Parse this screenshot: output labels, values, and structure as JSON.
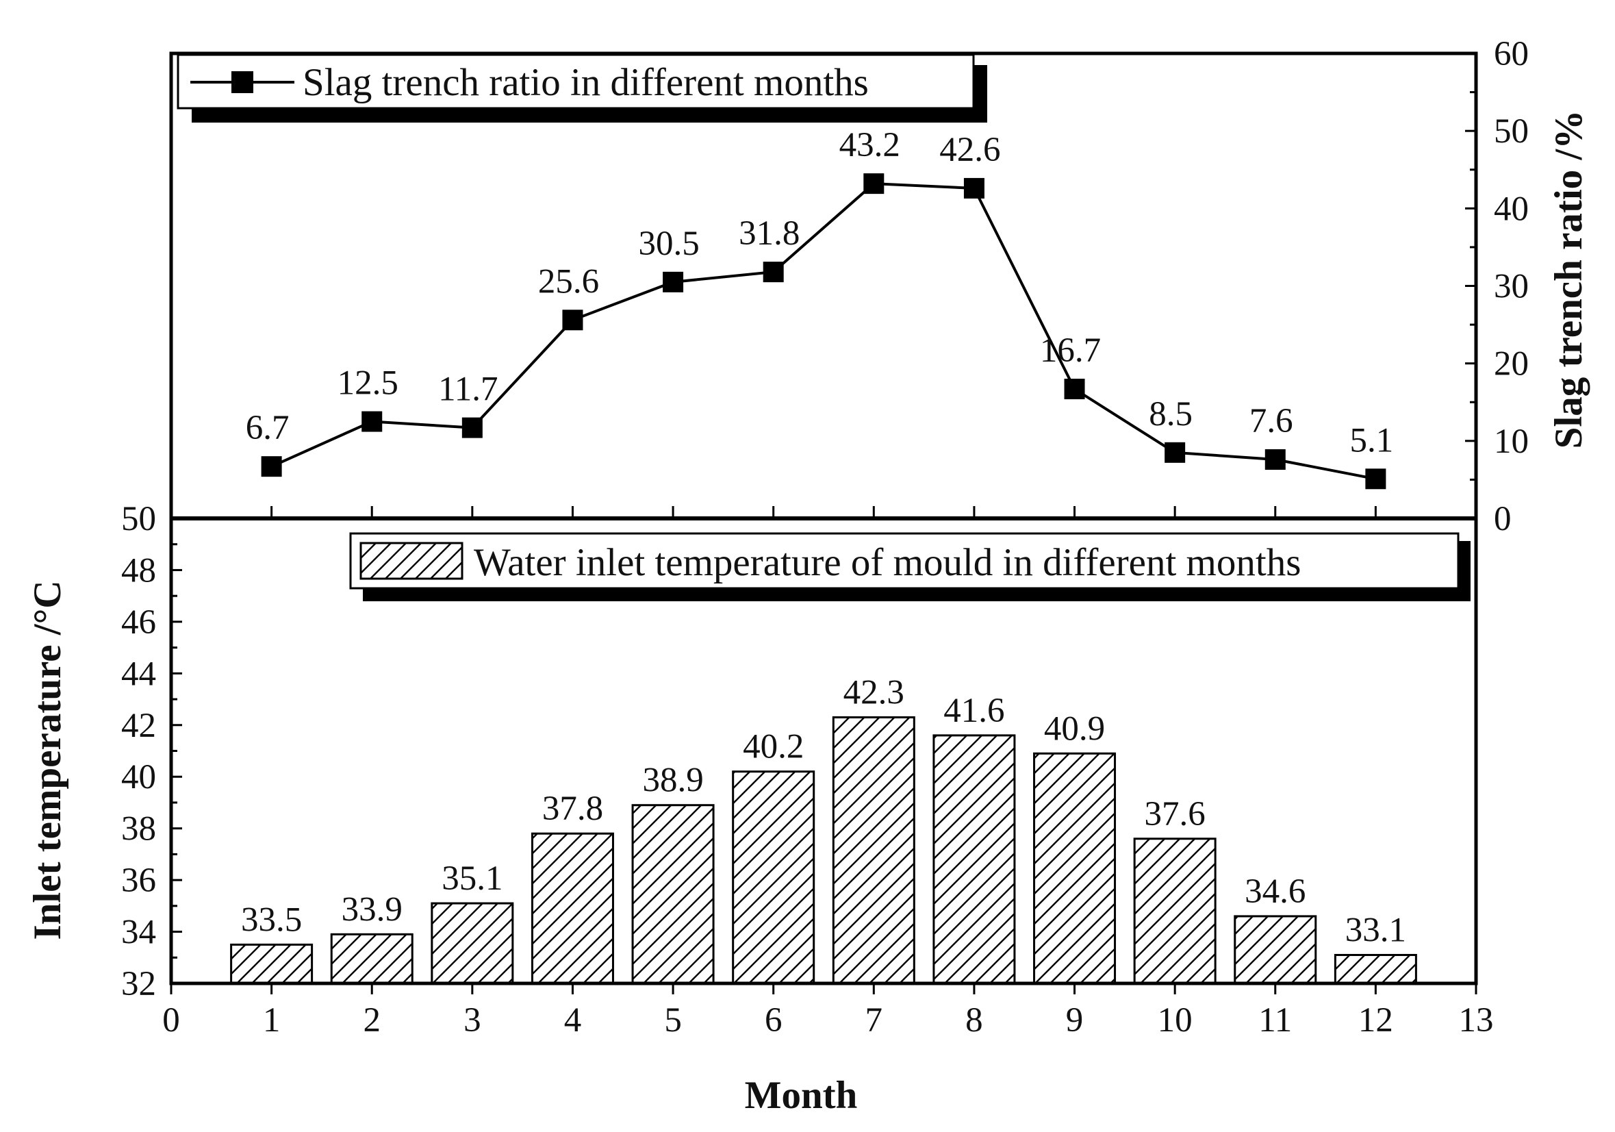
{
  "chart_data": [
    {
      "type": "line",
      "panel": "top",
      "legend": "Slag trench ratio in different months",
      "ylabel": "Slag trench ratio /%",
      "y_axis_side": "right",
      "ylim": [
        0,
        60
      ],
      "y_ticks": [
        0,
        10,
        20,
        30,
        40,
        50,
        60
      ],
      "x": [
        1,
        2,
        3,
        4,
        5,
        6,
        7,
        8,
        9,
        10,
        11,
        12
      ],
      "values": [
        6.7,
        12.5,
        11.7,
        25.6,
        30.5,
        31.8,
        43.2,
        42.6,
        16.7,
        8.5,
        7.6,
        5.1
      ],
      "data_labels": [
        "6.7",
        "12.5",
        "11.7",
        "25.6",
        "30.5",
        "31.8",
        "43.2",
        "42.6",
        "16.7",
        "8.5",
        "7.6",
        "5.1"
      ],
      "legend_position": "top-left",
      "marker": "square"
    },
    {
      "type": "bar",
      "panel": "bottom",
      "legend": "Water inlet temperature of mould in different months",
      "ylabel": "Inlet temperature /°C",
      "y_axis_side": "left",
      "ylim": [
        32,
        50
      ],
      "y_ticks": [
        32,
        34,
        36,
        38,
        40,
        42,
        44,
        46,
        48,
        50
      ],
      "x": [
        1,
        2,
        3,
        4,
        5,
        6,
        7,
        8,
        9,
        10,
        11,
        12
      ],
      "values": [
        33.5,
        33.9,
        35.1,
        37.8,
        38.9,
        40.2,
        42.3,
        41.6,
        40.9,
        37.6,
        34.6,
        33.1
      ],
      "data_labels": [
        "33.5",
        "33.9",
        "35.1",
        "37.8",
        "38.9",
        "40.2",
        "42.3",
        "41.6",
        "40.9",
        "37.6",
        "34.6",
        "33.1"
      ],
      "legend_position": "top-right",
      "fill": "hatched"
    }
  ],
  "x_axis": {
    "title": "Month",
    "xlim": [
      0,
      13
    ],
    "ticks": [
      0,
      1,
      2,
      3,
      4,
      5,
      6,
      7,
      8,
      9,
      10,
      11,
      12,
      13
    ]
  },
  "colors": {
    "ink": "#000000",
    "background": "#ffffff"
  }
}
